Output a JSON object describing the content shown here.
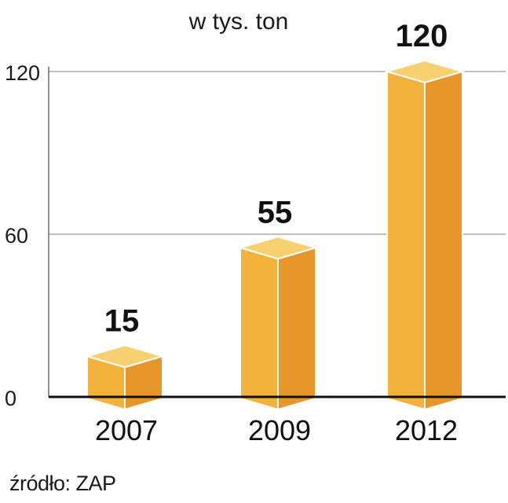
{
  "chart_data": {
    "type": "bar",
    "title": "w tys. ton",
    "categories": [
      "2007",
      "2009",
      "2012"
    ],
    "values": [
      15,
      55,
      120
    ],
    "value_labels": [
      "15",
      "55",
      "120"
    ],
    "yticks": [
      "0",
      "60",
      "120"
    ],
    "ylim": [
      0,
      120
    ],
    "grid": true,
    "colors": {
      "front": "#F3B23C",
      "side": "#E8962A",
      "top": "#F7D170"
    }
  },
  "source": "źródło: ZAP"
}
